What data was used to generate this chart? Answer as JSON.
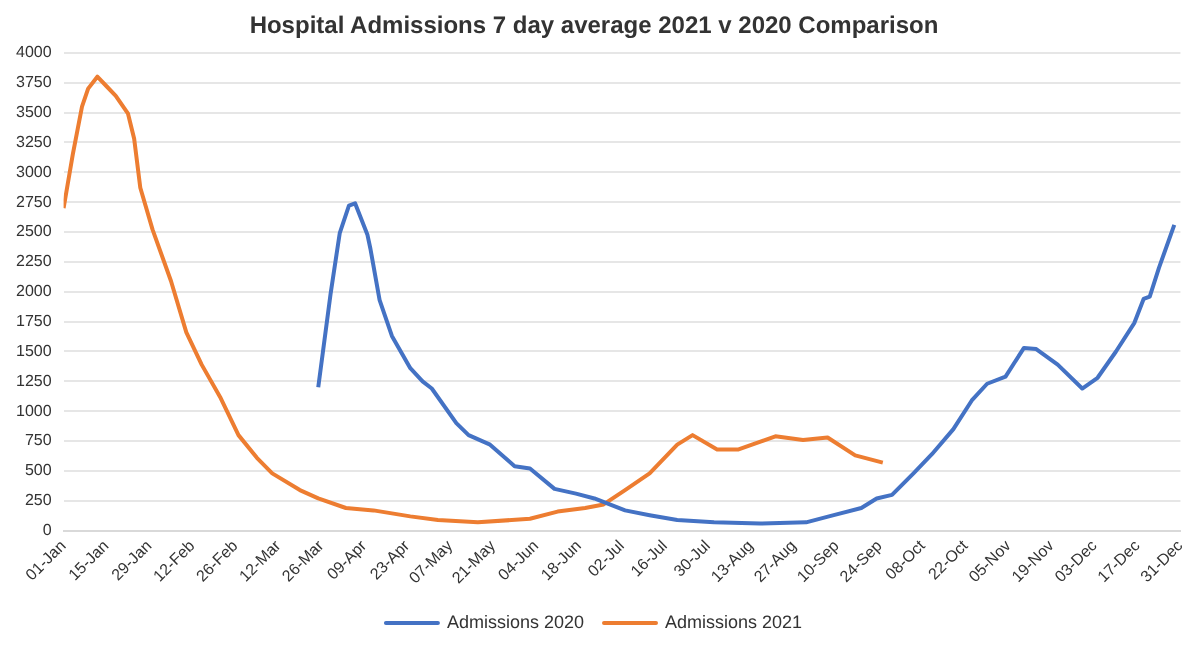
{
  "chart_data": {
    "type": "line",
    "title": "Hospital Admissions 7 day average 2021 v 2020 Comparison",
    "xlim": [
      "--01-01",
      "--12-31"
    ],
    "xticks": [
      {
        "value": "--01-01",
        "label": "01-Jan"
      },
      {
        "value": "--01-15",
        "label": "15-Jan"
      },
      {
        "value": "--01-29",
        "label": "29-Jan"
      },
      {
        "value": "--02-12",
        "label": "12-Feb"
      },
      {
        "value": "--02-26",
        "label": "26-Feb"
      },
      {
        "value": "--03-12",
        "label": "12-Mar"
      },
      {
        "value": "--03-26",
        "label": "26-Mar"
      },
      {
        "value": "--04-09",
        "label": "09-Apr"
      },
      {
        "value": "--04-23",
        "label": "23-Apr"
      },
      {
        "value": "--05-07",
        "label": "07-May"
      },
      {
        "value": "--05-21",
        "label": "21-May"
      },
      {
        "value": "--06-04",
        "label": "04-Jun"
      },
      {
        "value": "--06-18",
        "label": "18-Jun"
      },
      {
        "value": "--07-02",
        "label": "02-Jul"
      },
      {
        "value": "--07-16",
        "label": "16-Jul"
      },
      {
        "value": "--07-30",
        "label": "30-Jul"
      },
      {
        "value": "--08-13",
        "label": "13-Aug"
      },
      {
        "value": "--08-27",
        "label": "27-Aug"
      },
      {
        "value": "--09-10",
        "label": "10-Sep"
      },
      {
        "value": "--09-24",
        "label": "24-Sep"
      },
      {
        "value": "--10-08",
        "label": "08-Oct"
      },
      {
        "value": "--10-22",
        "label": "22-Oct"
      },
      {
        "value": "--11-05",
        "label": "05-Nov"
      },
      {
        "value": "--11-19",
        "label": "19-Nov"
      },
      {
        "value": "--12-03",
        "label": "03-Dec"
      },
      {
        "value": "--12-17",
        "label": "17-Dec"
      },
      {
        "value": "--12-31",
        "label": "31-Dec"
      }
    ],
    "ylim": [
      0,
      4000
    ],
    "yticks": [
      0,
      250,
      500,
      750,
      1000,
      1250,
      1500,
      1750,
      2000,
      2250,
      2500,
      2750,
      3000,
      3250,
      3500,
      3750,
      4000
    ],
    "grid": "y",
    "legend": "bottom",
    "marker": "none",
    "line_style": "solid",
    "series": [
      {
        "name": "Admissions 2020",
        "color": "#4472c4",
        "x": [
          "--03-25",
          "--03-29",
          "--04-01",
          "--04-04",
          "--04-06",
          "--04-10",
          "--04-11",
          "--04-14",
          "--04-18",
          "--04-24",
          "--04-28",
          "--05-01",
          "--05-09",
          "--05-13",
          "--05-20",
          "--05-28",
          "--06-02",
          "--06-10",
          "--06-17",
          "--06-23",
          "--07-03",
          "--07-11",
          "--07-20",
          "--08-01",
          "--08-16",
          "--08-31",
          "--09-09",
          "--09-18",
          "--09-23",
          "--09-28",
          "--10-05",
          "--10-11",
          "--10-18",
          "--10-24",
          "--10-29",
          "--11-04",
          "--11-10",
          "--11-14",
          "--11-21",
          "--11-29",
          "--12-04",
          "--12-10",
          "--12-16",
          "--12-19",
          "--12-21",
          "--12-24",
          "--12-29"
        ],
        "values": [
          1200,
          1980,
          2490,
          2720,
          2740,
          2480,
          2360,
          1930,
          1630,
          1360,
          1250,
          1190,
          900,
          800,
          720,
          540,
          520,
          350,
          310,
          270,
          170,
          130,
          90,
          70,
          60,
          70,
          130,
          190,
          270,
          300,
          480,
          640,
          850,
          1090,
          1230,
          1290,
          1530,
          1520,
          1390,
          1190,
          1280,
          1500,
          1740,
          1940,
          1960,
          2200,
          2560
        ]
      },
      {
        "name": "Admissions 2021",
        "color": "#ed7d31",
        "x": [
          "--01-01",
          "--01-04",
          "--01-07",
          "--01-09",
          "--01-12",
          "--01-15",
          "--01-18",
          "--01-22",
          "--01-24",
          "--01-26",
          "--01-30",
          "--02-05",
          "--02-10",
          "--02-15",
          "--02-21",
          "--02-27",
          "--03-05",
          "--03-10",
          "--03-19",
          "--03-25",
          "--04-03",
          "--04-12",
          "--04-24",
          "--05-03",
          "--05-16",
          "--06-02",
          "--06-11",
          "--06-20",
          "--06-26",
          "--07-03",
          "--07-11",
          "--07-20",
          "--07-25",
          "--08-02",
          "--08-09",
          "--08-21",
          "--08-30",
          "--09-07",
          "--09-16",
          "--09-25"
        ],
        "values": [
          2700,
          3150,
          3550,
          3700,
          3800,
          3720,
          3640,
          3490,
          3280,
          2870,
          2520,
          2090,
          1660,
          1390,
          1120,
          800,
          610,
          480,
          340,
          270,
          190,
          170,
          120,
          90,
          70,
          100,
          160,
          190,
          220,
          340,
          480,
          720,
          800,
          680,
          680,
          790,
          760,
          780,
          630,
          570
        ]
      }
    ]
  }
}
